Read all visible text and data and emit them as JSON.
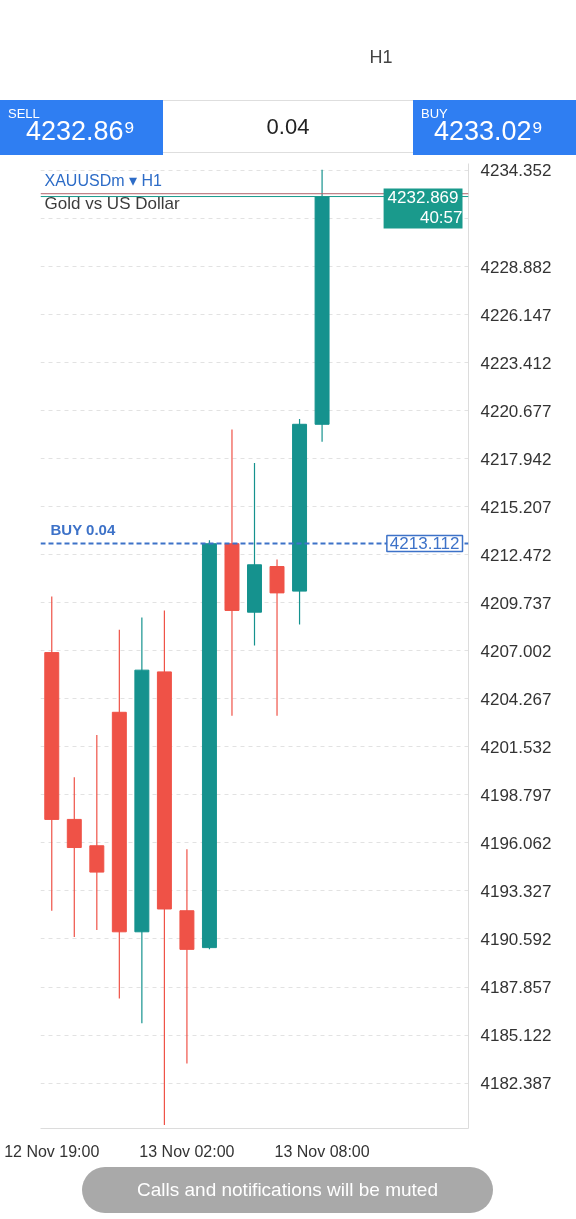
{
  "chart_data": {
    "type": "candlestick",
    "title": "XAUUSDm ▾ H1",
    "subtitle": "Gold vs US Dollar",
    "categories": [
      "12 Nov 19:00",
      null,
      null,
      null,
      null,
      null,
      "13 Nov 02:00",
      null,
      null,
      null,
      null,
      null,
      "13 Nov 08:00",
      null,
      null,
      null,
      null,
      null,
      null
    ],
    "ohlc": [
      [
        4206.9,
        4210.1,
        4192.2,
        4197.4
      ],
      [
        4197.4,
        4199.8,
        4190.7,
        4195.8
      ],
      [
        4195.9,
        4202.2,
        4191.1,
        4194.4
      ],
      [
        4203.5,
        4208.2,
        4187.2,
        4191.0
      ],
      [
        4191.0,
        4208.9,
        4185.8,
        4205.9
      ],
      [
        4205.8,
        4209.3,
        4180.0,
        4192.3
      ],
      [
        4192.2,
        4195.7,
        4183.5,
        4190.0
      ],
      [
        4190.1,
        4213.3,
        4190.0,
        4213.1
      ],
      [
        4213.1,
        4219.6,
        4203.3,
        4209.3
      ],
      [
        4209.2,
        4217.7,
        4207.3,
        4211.9
      ],
      [
        4211.8,
        4212.2,
        4203.3,
        4210.3
      ],
      [
        4210.4,
        4220.2,
        4208.5,
        4219.9
      ],
      [
        4219.9,
        4234.4,
        4218.9,
        4232.869
      ],
      null,
      null,
      null,
      null,
      null,
      null
    ],
    "colors": [
      "#ef5247",
      "#ef5247",
      "#ef5247",
      "#ef5247",
      "#15928e",
      "#ef5247",
      "#ef5247",
      "#15928e",
      "#ef5247",
      "#15928e",
      "#ef5247",
      "#15928e",
      "#15928e",
      null,
      null,
      null,
      null,
      null,
      null
    ],
    "ylim": [
      4179.8,
      4234.75
    ],
    "yticks": [
      4234.352,
      {
        "value": 4231.617,
        "label": null
      },
      4228.882,
      4226.147,
      4223.412,
      4220.677,
      4217.942,
      4215.207,
      4212.472,
      4209.737,
      4207.002,
      4204.267,
      4201.532,
      4198.797,
      4196.062,
      4193.327,
      4190.592,
      4187.857,
      4185.122,
      4182.387
    ],
    "grid": "y",
    "ref_lines": [
      {
        "axis": "y",
        "value": 4233.029,
        "color": "#b0606a"
      },
      {
        "axis": "y",
        "value": 4232.869,
        "label": "4232.869",
        "color": "#1a9a8c"
      },
      {
        "axis": "y",
        "value": 4213.112,
        "label": "4213.112",
        "color": "#3d72c8",
        "line_style": "dashed"
      }
    ],
    "annotations": [
      "H1",
      "SELL",
      "4232.86⁹",
      "0.04",
      "BUY",
      "4233.02⁹",
      {
        "text": "40:57",
        "y": 4232.869
      },
      {
        "text": "BUY 0.04",
        "y": 4213.112
      },
      "Calls and notifications will be muted"
    ]
  }
}
